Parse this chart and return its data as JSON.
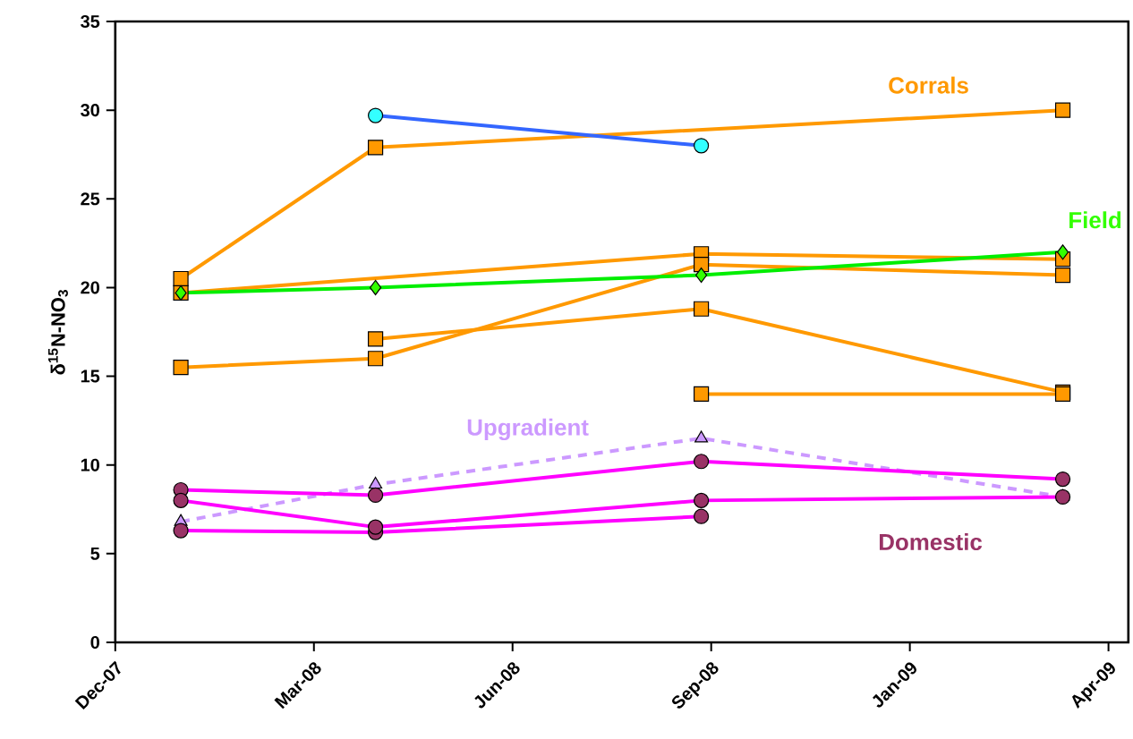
{
  "chart_data": {
    "type": "line",
    "ylabel": "δ$^{15}$N-NO$_{3}$",
    "x": [
      "2008-01-03",
      "2008-04-10",
      "2008-09-21",
      "2009-03-22"
    ],
    "xlim": [
      "2007-12-01",
      "2009-04-24"
    ],
    "xticks": [
      {
        "value": "2007-12-01",
        "label": "Dec-07"
      },
      {
        "value": "2008-03-10",
        "label": "Mar-08"
      },
      {
        "value": "2008-06-18",
        "label": "Jun-08"
      },
      {
        "value": "2008-09-26",
        "label": "Sep-08"
      },
      {
        "value": "2009-01-04",
        "label": "Jan-09"
      },
      {
        "value": "2009-04-14",
        "label": "Apr-09"
      }
    ],
    "ylim": [
      0,
      35
    ],
    "yticks": [
      0,
      5,
      10,
      15,
      20,
      25,
      30,
      35
    ],
    "series": [
      {
        "name": "Corrals",
        "color": "#ff9900",
        "marker": "square",
        "x": [
          "2008-01-03",
          "2008-04-10",
          "2009-03-22"
        ],
        "values": [
          20.5,
          27.9,
          30.0
        ],
        "colors": [
          "#ff9900",
          "#ff9900",
          "#ff9900"
        ]
      },
      {
        "color": "#ff9900",
        "marker": "square",
        "x": [
          "2008-01-03",
          "2008-09-21",
          "2009-03-22"
        ],
        "values": [
          19.7,
          21.9,
          21.6
        ],
        "colors": [
          "#ff9900",
          "#ff9900",
          "#ff9900"
        ]
      },
      {
        "color": "#ff9900",
        "marker": "square",
        "values": [
          15.5,
          16.0,
          21.3,
          20.7
        ],
        "colors": [
          "#ff9900",
          "#ff9900",
          "#ff9900",
          "#ff9900"
        ]
      },
      {
        "color": "#ff9900",
        "marker": "square",
        "x": [
          "2008-04-10",
          "2008-09-21",
          "2009-03-22"
        ],
        "values": [
          17.1,
          18.8,
          14.1
        ],
        "colors": [
          "#ff9900",
          "#ff9900",
          "#ff9900"
        ]
      },
      {
        "color": "#ff9900",
        "marker": "square",
        "x": [
          "2008-09-21",
          "2009-03-22"
        ],
        "values": [
          14.0,
          14.0
        ],
        "colors": [
          "#ff9900",
          "#ff9900"
        ]
      },
      {
        "color": "#3366ff",
        "marker": "circle",
        "x": [
          "2008-04-10",
          "2008-09-21"
        ],
        "values": [
          29.7,
          28.0
        ],
        "colors": [
          "#33ffff",
          "#33ffff"
        ]
      },
      {
        "name": "Field",
        "color": "#00ee00",
        "marker": "diamond",
        "values": [
          19.7,
          20.0,
          20.7,
          22.0
        ],
        "colors": [
          "#33ff00",
          "#33ff00",
          "#33ff00",
          "#33ff00"
        ]
      },
      {
        "name": "Upgradient",
        "color": "#cc99ff",
        "marker": "triangle",
        "line_style": "dashed",
        "values": [
          6.8,
          8.9,
          11.5,
          8.2
        ],
        "colors": [
          "#cc99ff",
          "#cc99ff",
          "#cc99ff",
          "#cc99ff"
        ]
      },
      {
        "name": "Domestic",
        "color": "#ff00ff",
        "marker": "circle",
        "values": [
          8.6,
          8.3,
          10.2,
          9.2
        ],
        "colors": [
          "#993366",
          "#993366",
          "#993366",
          "#993366"
        ]
      },
      {
        "color": "#ff00ff",
        "marker": "circle",
        "x": [
          "2008-01-03",
          "2008-04-10",
          "2008-09-21"
        ],
        "values": [
          6.3,
          6.2,
          7.1
        ],
        "colors": [
          "#993366",
          "#993366",
          "#993366"
        ]
      },
      {
        "color": "#ff00ff",
        "marker": "circle",
        "values": [
          8.0,
          6.5,
          8.0,
          8.2
        ],
        "colors": [
          "#993366",
          "#993366",
          "#993366",
          "#993366"
        ]
      }
    ]
  }
}
